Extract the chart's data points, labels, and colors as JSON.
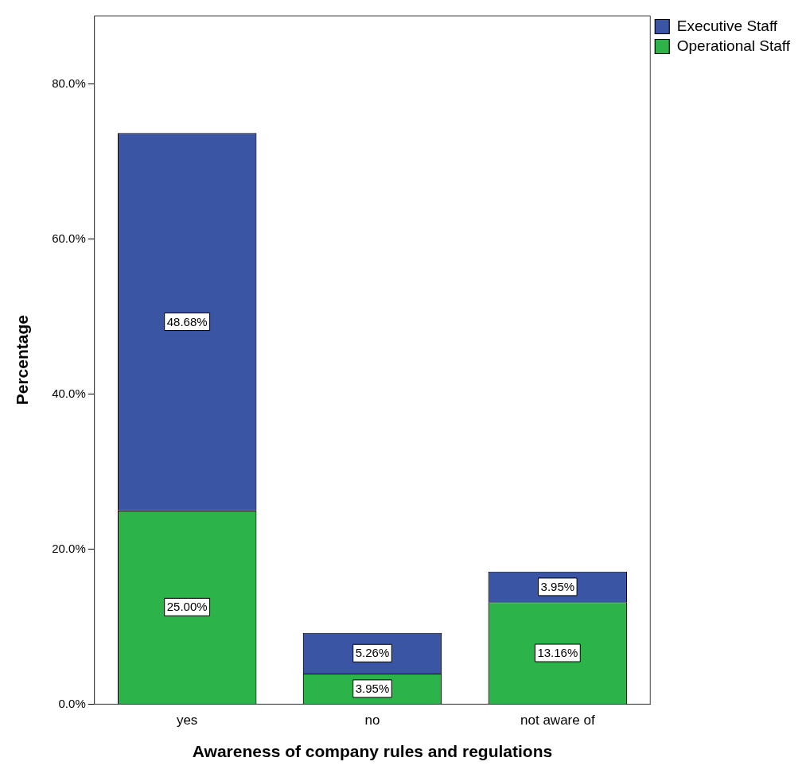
{
  "chart_data": {
    "type": "bar",
    "stacked": true,
    "xlabel": "Awareness of company rules and regulations",
    "ylabel": "Percentage",
    "categories": [
      "yes",
      "no",
      "not aware of"
    ],
    "series": [
      {
        "name": "Operational Staff",
        "color": "#2cb34a",
        "values": [
          25.0,
          3.95,
          13.16
        ],
        "value_labels": [
          "25.00%",
          "3.95%",
          "13.16%"
        ]
      },
      {
        "name": "Executive Staff",
        "color": "#3a55a4",
        "values": [
          48.68,
          5.26,
          3.95
        ],
        "value_labels": [
          "48.68%",
          "5.26%",
          "3.95%"
        ]
      }
    ],
    "ylim": [
      0,
      88.8
    ],
    "yticks": [
      {
        "value": 0,
        "label": "0.0%"
      },
      {
        "value": 20,
        "label": "20.0%"
      },
      {
        "value": 40,
        "label": "40.0%"
      },
      {
        "value": 60,
        "label": "60.0%"
      },
      {
        "value": 80,
        "label": "80.0%"
      }
    ],
    "grid": false,
    "legend": "top right"
  }
}
